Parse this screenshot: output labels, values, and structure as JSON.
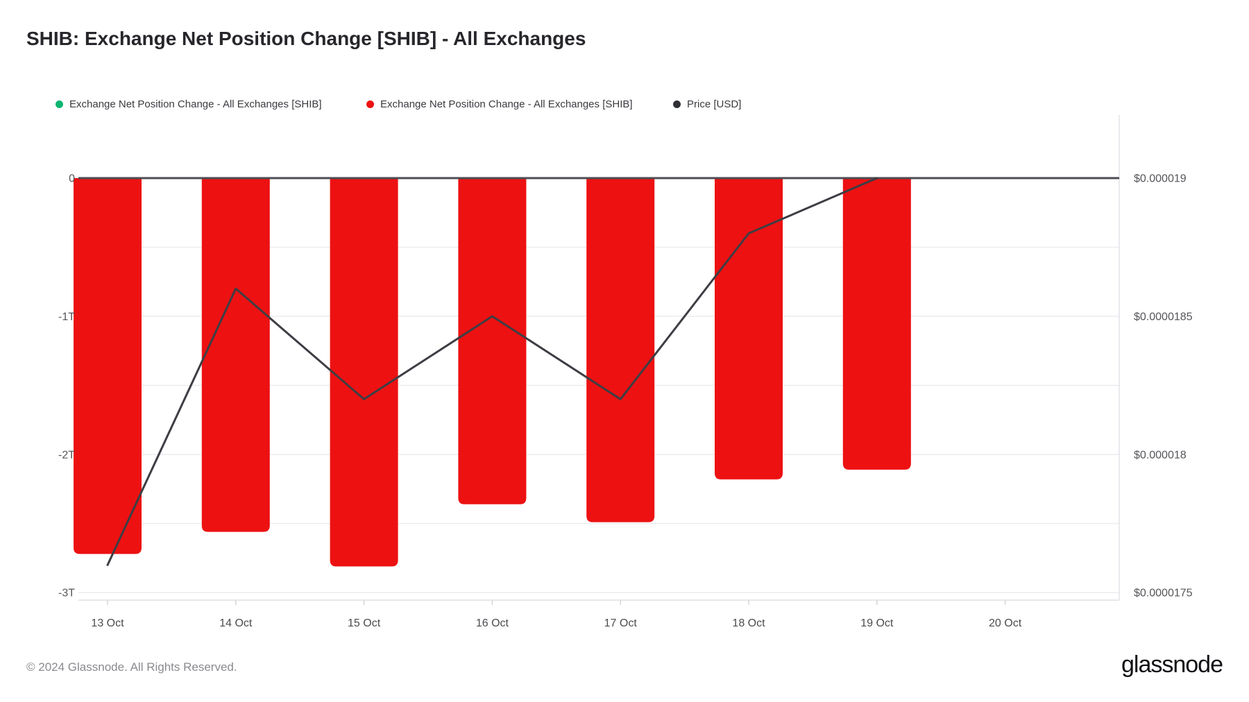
{
  "header": {
    "title": "SHIB: Exchange Net Position Change [SHIB] - All Exchanges"
  },
  "legend": [
    {
      "label": "Exchange Net Position Change - All Exchanges [SHIB]",
      "color": "#0db470"
    },
    {
      "label": "Exchange Net Position Change - All Exchanges [SHIB]",
      "color": "#ed1112"
    },
    {
      "label": "Price [USD]",
      "color": "#303136"
    }
  ],
  "footer": {
    "copyright": "© 2024 Glassnode. All Rights Reserved.",
    "brand": "glassnode"
  },
  "chart_data": {
    "type": "bar+line",
    "title": "SHIB: Exchange Net Position Change [SHIB] - All Exchanges",
    "categories": [
      "13 Oct",
      "14 Oct",
      "15 Oct",
      "16 Oct",
      "17 Oct",
      "18 Oct",
      "19 Oct",
      "20 Oct"
    ],
    "series": [
      {
        "name": "Exchange Net Position Change - All Exchanges [SHIB]",
        "type": "bar",
        "axis": "left",
        "unit": "trillion SHIB",
        "color": "#ed1112",
        "values": [
          -2.72,
          -2.56,
          -2.81,
          -2.36,
          -2.49,
          -2.18,
          -2.11,
          null
        ]
      },
      {
        "name": "Price [USD]",
        "type": "line",
        "axis": "right",
        "unit": "USD",
        "color": "#3d3e44",
        "values": [
          1.76e-05,
          1.86e-05,
          1.82e-05,
          1.85e-05,
          1.82e-05,
          1.88e-05,
          1.9e-05,
          null
        ]
      }
    ],
    "left_axis": {
      "ticks": [
        "0",
        "-1T",
        "-2T",
        "-3T"
      ],
      "tick_values": [
        0,
        -1,
        -2,
        -3
      ],
      "range": [
        0.56,
        -3.05
      ]
    },
    "right_axis": {
      "ticks": [
        "$0.000019",
        "$0.0000185",
        "$0.000018",
        "$0.0000175"
      ],
      "tick_values": [
        1.9e-05,
        1.85e-05,
        1.8e-05,
        1.75e-05
      ],
      "range": [
        1.93e-05,
        1.75e-05
      ]
    },
    "grid": "horizontal, minor every 0.5T, light gray",
    "zero_line": true,
    "legend_position": "top"
  }
}
